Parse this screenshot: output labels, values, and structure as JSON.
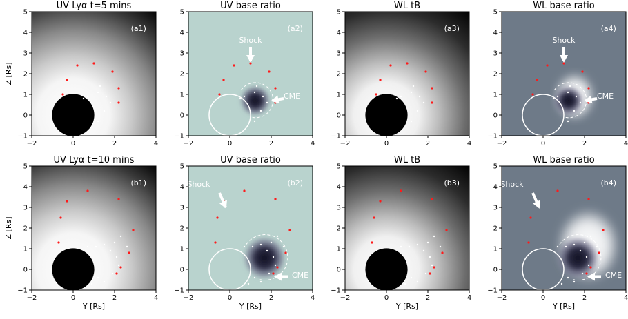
{
  "figure": {
    "panels": [
      {
        "id": "a1",
        "title": "UV Lyα t=5 mins",
        "label": "(a1)",
        "style": "uv-intensity",
        "ylabel": "Z [Rs]",
        "xlabel": "",
        "arrows": []
      },
      {
        "id": "a2",
        "title": "UV base ratio",
        "label": "(a2)",
        "style": "uv-ratio",
        "ylabel": "",
        "xlabel": "",
        "arrows": [
          {
            "text": "Shock",
            "dir": "down"
          },
          {
            "text": "CME",
            "dir": "left"
          }
        ]
      },
      {
        "id": "a3",
        "title": "WL tB",
        "label": "(a3)",
        "style": "wl-tb",
        "ylabel": "",
        "xlabel": "",
        "arrows": []
      },
      {
        "id": "a4",
        "title": "WL base ratio",
        "label": "(a4)",
        "style": "wl-ratio",
        "ylabel": "",
        "xlabel": "",
        "arrows": [
          {
            "text": "Shock",
            "dir": "down"
          },
          {
            "text": "CME",
            "dir": "left"
          }
        ]
      },
      {
        "id": "b1",
        "title": "UV Lyα t=10 mins",
        "label": "(b1)",
        "style": "uv-intensity",
        "ylabel": "Z [Rs]",
        "xlabel": "Y [Rs]",
        "arrows": []
      },
      {
        "id": "b2",
        "title": "UV base ratio",
        "label": "(b2)",
        "style": "uv-ratio",
        "ylabel": "",
        "xlabel": "Y [Rs]",
        "arrows": [
          {
            "text": "Shock",
            "dir": "diag"
          },
          {
            "text": "CME",
            "dir": "left"
          }
        ]
      },
      {
        "id": "b3",
        "title": "WL tB",
        "label": "(b3)",
        "style": "wl-tb",
        "ylabel": "",
        "xlabel": "Y [Rs]",
        "arrows": []
      },
      {
        "id": "b4",
        "title": "WL base ratio",
        "label": "(b4)",
        "style": "wl-ratio",
        "ylabel": "",
        "xlabel": "Y [Rs]",
        "arrows": [
          {
            "text": "Shock",
            "dir": "diag"
          },
          {
            "text": "CME",
            "dir": "left"
          }
        ]
      }
    ]
  },
  "chart_data": {
    "type": "heatmap",
    "xlim": [
      -2,
      4
    ],
    "ylim": [
      -1,
      5
    ],
    "xticks": [
      "−2",
      "0",
      "2",
      "4"
    ],
    "yticks": [
      "−1",
      "0",
      "1",
      "2",
      "3",
      "4",
      "5"
    ],
    "sun_radius": 1,
    "t5": {
      "shock_points": [
        [
          -0.5,
          1.0
        ],
        [
          -0.3,
          1.7
        ],
        [
          0.2,
          2.4
        ],
        [
          1.0,
          2.5
        ],
        [
          1.9,
          2.1
        ],
        [
          2.2,
          1.3
        ],
        [
          2.2,
          0.6
        ]
      ],
      "cme_points": [
        [
          0.5,
          0.8
        ],
        [
          1.2,
          1.1
        ],
        [
          1.6,
          0.9
        ],
        [
          1.8,
          0.6
        ],
        [
          1.5,
          0.2
        ],
        [
          1.2,
          -0.3
        ],
        [
          0.7,
          0.9
        ],
        [
          1.3,
          1.4
        ]
      ],
      "shock_arrow": {
        "text_at": [
          1.0,
          3.6
        ],
        "from": [
          1.0,
          3.3
        ],
        "to": [
          1.0,
          2.6
        ]
      },
      "cme_arrow": {
        "text_at": [
          2.6,
          0.9
        ],
        "from": [
          2.6,
          0.8
        ],
        "to": [
          2.05,
          0.7
        ]
      }
    },
    "t10": {
      "shock_points": [
        [
          -0.7,
          1.3
        ],
        [
          -0.6,
          2.5
        ],
        [
          -0.3,
          3.3
        ],
        [
          0.7,
          3.8
        ],
        [
          2.2,
          3.4
        ],
        [
          2.9,
          1.9
        ],
        [
          2.7,
          0.8
        ],
        [
          2.3,
          0.1
        ],
        [
          2.1,
          -0.2
        ]
      ],
      "cme_points": [
        [
          0.7,
          1.1
        ],
        [
          1.1,
          1.1
        ],
        [
          1.5,
          1.2
        ],
        [
          1.8,
          0.9
        ],
        [
          2.1,
          0.6
        ],
        [
          2.2,
          0.2
        ],
        [
          1.9,
          -0.2
        ],
        [
          1.5,
          -0.6
        ],
        [
          1.2,
          -0.4
        ],
        [
          2.0,
          1.3
        ],
        [
          2.3,
          1.6
        ],
        [
          2.6,
          1.1
        ],
        [
          0.9,
          -0.7
        ]
      ],
      "shock_arrow": {
        "text_at": [
          -1.5,
          4.1
        ],
        "from": [
          -0.5,
          3.7
        ],
        "to": [
          -0.2,
          3.0
        ]
      },
      "cme_arrow": {
        "text_at": [
          3.0,
          -0.3
        ],
        "from": [
          2.8,
          -0.35
        ],
        "to": [
          2.2,
          -0.35
        ]
      }
    }
  },
  "colors": {
    "uv_ratio_bg": "#b9d3ce",
    "wl_ratio_bg": "#6e7a88",
    "shock_point": "#ff1a1a",
    "cme_point": "#ffffff"
  }
}
